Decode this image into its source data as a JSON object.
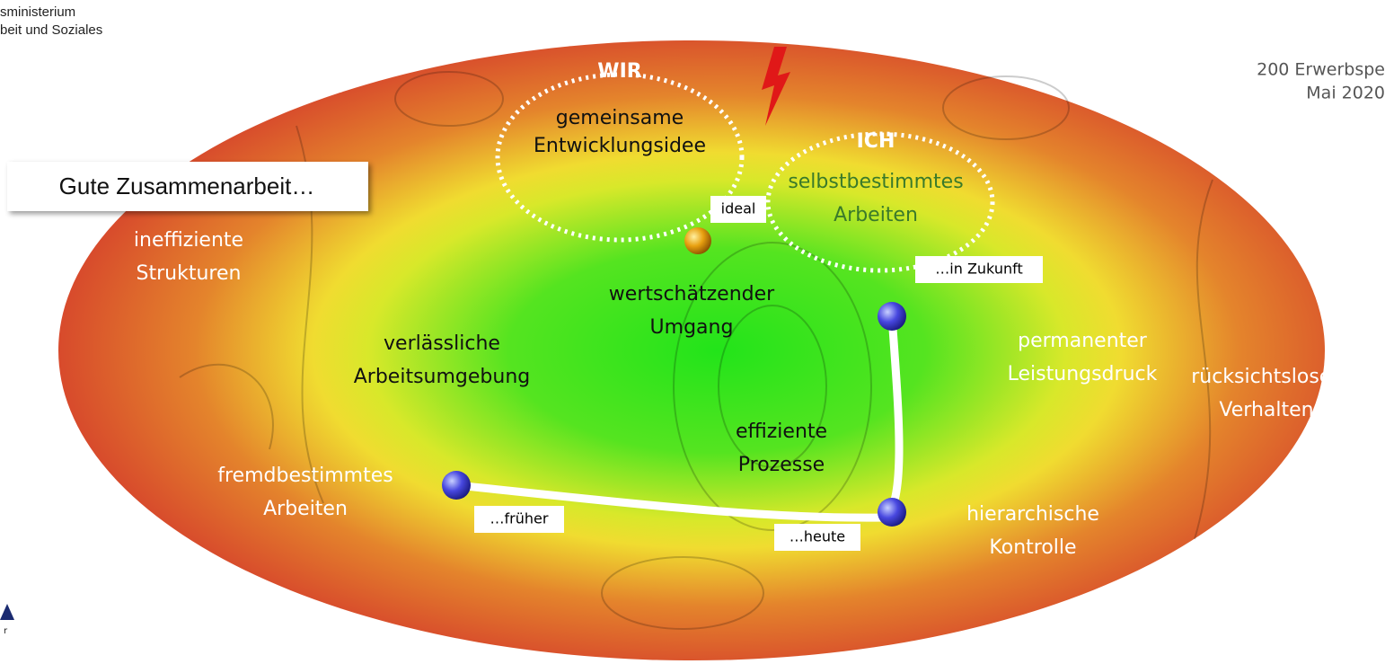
{
  "header": {
    "ministry": [
      "sministerium",
      "beit und Soziales"
    ],
    "survey": [
      "200 Erwerbspe",
      "Mai 2020"
    ],
    "logo_text": "r"
  },
  "callout": "Gute Zusammenarbeit…",
  "wir": {
    "title": "WIR",
    "text": [
      "gemeinsame",
      "Entwicklungsidee"
    ]
  },
  "ich": {
    "title": "ICH",
    "text": [
      "selbstbestimmtes",
      "Arbeiten"
    ]
  },
  "labels": [
    {
      "lines": [
        "ineffiziente",
        "Strukturen"
      ]
    },
    {
      "lines": [
        "wertschätzender",
        "Umgang"
      ]
    },
    {
      "lines": [
        "verlässliche",
        "Arbeitsumgebung"
      ]
    },
    {
      "lines": [
        "permanenter",
        "Leistungsdruck"
      ]
    },
    {
      "lines": [
        "rücksichtsloses",
        "Verhalten"
      ]
    },
    {
      "lines": [
        "effiziente",
        "Prozesse"
      ]
    },
    {
      "lines": [
        "fremdbestimmtes",
        "Arbeiten"
      ]
    },
    {
      "lines": [
        "hierarchische",
        "Kontrolle"
      ]
    }
  ],
  "tags": [
    "ideal",
    "…in Zukunft",
    "…früher",
    "…heute"
  ]
}
